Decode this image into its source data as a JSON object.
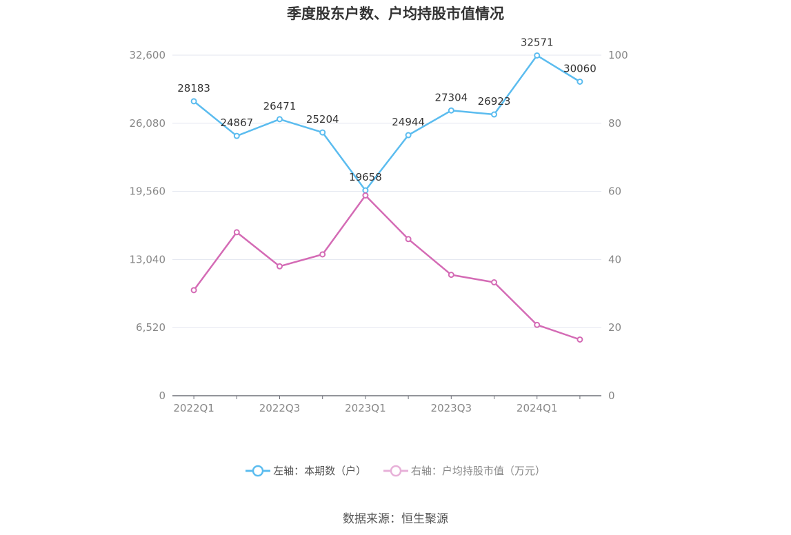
{
  "chart_data": {
    "type": "line",
    "title": "季度股东户数、户均持股市值情况",
    "categories": [
      "2022Q1",
      "2022Q2",
      "2022Q3",
      "2022Q4",
      "2023Q1",
      "2023Q2",
      "2023Q3",
      "2023Q4",
      "2024Q1",
      "2024Q2"
    ],
    "x_tick_labels": [
      "2022Q1",
      "2022Q3",
      "2023Q1",
      "2023Q3",
      "2024Q1"
    ],
    "left_axis": {
      "ylim": [
        0,
        32600
      ],
      "ticks": [
        "0",
        "6,520",
        "13,040",
        "19,560",
        "26,080",
        "32,600"
      ]
    },
    "right_axis": {
      "ylim": [
        0,
        100
      ],
      "ticks": [
        "0",
        "20",
        "40",
        "60",
        "80",
        "100"
      ]
    },
    "series": [
      {
        "name": "左轴：本期数（户）",
        "axis": "left",
        "color": "#5bbcef",
        "values": [
          28183,
          24867,
          26471,
          25204,
          19658,
          24944,
          27304,
          26923,
          32571,
          30060
        ],
        "labels": [
          "28183",
          "24867",
          "26471",
          "25204",
          "19658",
          "24944",
          "27304",
          "26923",
          "32571",
          "30060"
        ]
      },
      {
        "name": "右轴：户均持股市值（万元）",
        "axis": "right",
        "color": "#d46bb5",
        "values": [
          31.0,
          48.0,
          38.0,
          41.5,
          58.8,
          46.0,
          35.5,
          33.3,
          20.8,
          16.5
        ]
      }
    ],
    "grid": true,
    "legend_position": "bottom"
  },
  "source": "数据来源：恒生聚源"
}
